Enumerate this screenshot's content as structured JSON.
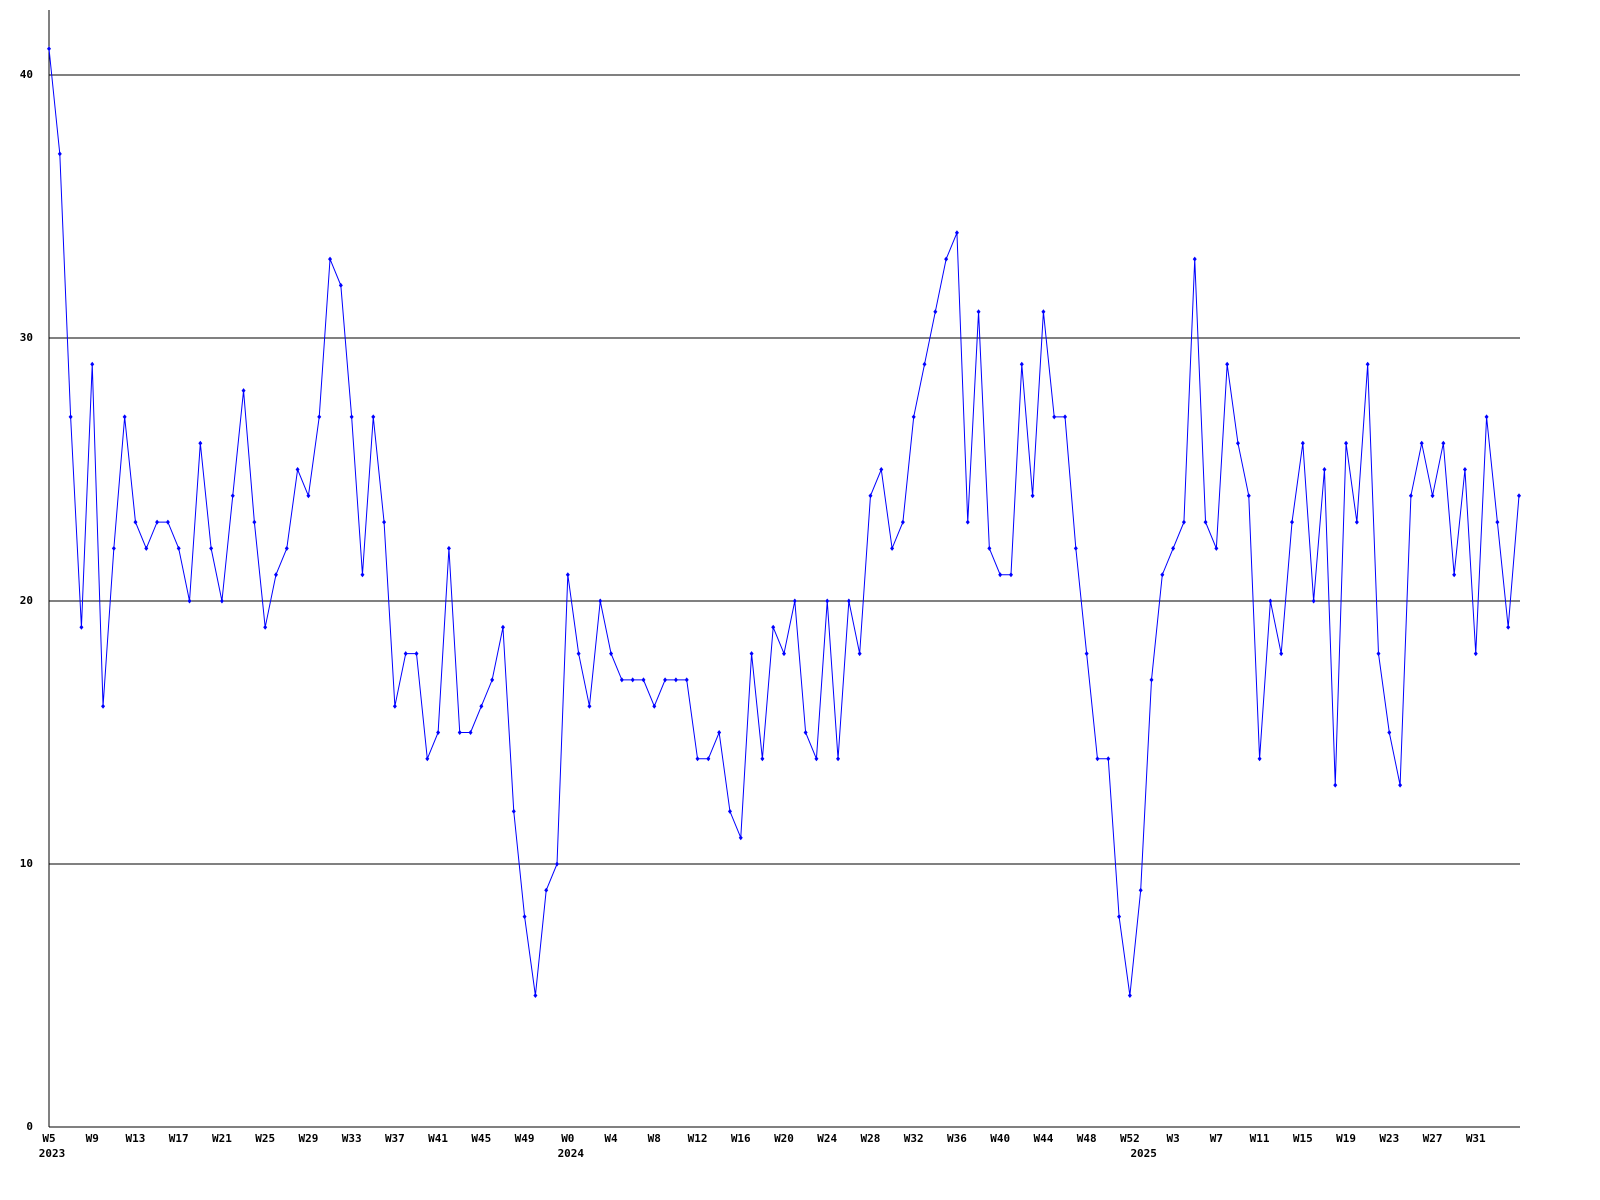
{
  "chart_data": {
    "type": "line",
    "color": "#0000ff",
    "grid": true,
    "ylim": [
      0,
      42
    ],
    "yticks": [
      0,
      10,
      20,
      30,
      40
    ],
    "categories": [
      "W5",
      null,
      null,
      null,
      "W9",
      null,
      null,
      null,
      "W13",
      null,
      null,
      null,
      "W17",
      null,
      null,
      null,
      "W21",
      null,
      null,
      null,
      "W25",
      null,
      null,
      null,
      "W29",
      null,
      null,
      null,
      "W33",
      null,
      null,
      null,
      "W37",
      null,
      null,
      null,
      "W41",
      null,
      null,
      null,
      "W45",
      null,
      null,
      null,
      "W49",
      null,
      null,
      null,
      "W0",
      null,
      null,
      null,
      "W4",
      null,
      null,
      null,
      "W8",
      null,
      null,
      null,
      "W12",
      null,
      null,
      null,
      "W16",
      null,
      null,
      null,
      "W20",
      null,
      null,
      null,
      "W24",
      null,
      null,
      null,
      "W28",
      null,
      null,
      null,
      "W32",
      null,
      null,
      null,
      "W36",
      null,
      null,
      null,
      "W40",
      null,
      null,
      null,
      "W44",
      null,
      null,
      null,
      "W48",
      null,
      null,
      null,
      "W52",
      null,
      null,
      null,
      "W3",
      null,
      null,
      null,
      "W7",
      null,
      null,
      null,
      "W11",
      null,
      null,
      null,
      "W15",
      null,
      null,
      null,
      "W19",
      null,
      null,
      null,
      "W23",
      null,
      null,
      null,
      "W27",
      null,
      null,
      null,
      "W31",
      null,
      null,
      null,
      null
    ],
    "category_years": [
      "2023",
      null,
      null,
      null,
      null,
      null,
      null,
      null,
      null,
      null,
      null,
      null,
      null,
      null,
      null,
      null,
      null,
      null,
      null,
      null,
      null,
      null,
      null,
      null,
      null,
      null,
      null,
      null,
      null,
      null,
      null,
      null,
      null,
      null,
      null,
      null,
      null,
      null,
      null,
      null,
      null,
      null,
      null,
      null,
      null,
      null,
      null,
      null,
      "2024",
      null,
      null,
      null,
      null,
      null,
      null,
      null,
      null,
      null,
      null,
      null,
      null,
      null,
      null,
      null,
      null,
      null,
      null,
      null,
      null,
      null,
      null,
      null,
      null,
      null,
      null,
      null,
      null,
      null,
      null,
      null,
      null,
      null,
      null,
      null,
      null,
      null,
      null,
      null,
      null,
      null,
      null,
      null,
      null,
      null,
      null,
      null,
      null,
      null,
      null,
      null,
      null,
      "2025",
      null,
      null,
      null,
      null,
      null,
      null,
      null,
      null,
      null,
      null,
      null,
      null,
      null,
      null,
      null,
      null,
      null,
      null,
      null,
      null,
      null,
      null,
      null,
      null,
      null,
      null,
      null,
      null,
      null,
      null,
      null,
      null,
      null,
      null,
      null
    ],
    "values": [
      41,
      37,
      27,
      19,
      29,
      16,
      22,
      27,
      23,
      22,
      23,
      23,
      22,
      20,
      26,
      22,
      20,
      24,
      28,
      23,
      19,
      21,
      22,
      25,
      24,
      27,
      33,
      32,
      27,
      21,
      27,
      23,
      16,
      18,
      18,
      14,
      15,
      22,
      15,
      15,
      16,
      17,
      19,
      12,
      8,
      5,
      9,
      10,
      21,
      18,
      16,
      20,
      18,
      17,
      17,
      17,
      16,
      17,
      17,
      17,
      14,
      14,
      15,
      12,
      11,
      18,
      14,
      19,
      18,
      20,
      15,
      14,
      20,
      14,
      20,
      18,
      24,
      25,
      22,
      23,
      27,
      29,
      31,
      33,
      34,
      23,
      31,
      22,
      21,
      21,
      29,
      24,
      31,
      27,
      27,
      22,
      18,
      14,
      14,
      8,
      5,
      9,
      17,
      21,
      22,
      23,
      33,
      23,
      22,
      29,
      26,
      24,
      14,
      20,
      18,
      23,
      26,
      20,
      25,
      13,
      26,
      23,
      29,
      18,
      15,
      13,
      24,
      26,
      24,
      26,
      21,
      25,
      18,
      27,
      23,
      19,
      24
    ]
  }
}
